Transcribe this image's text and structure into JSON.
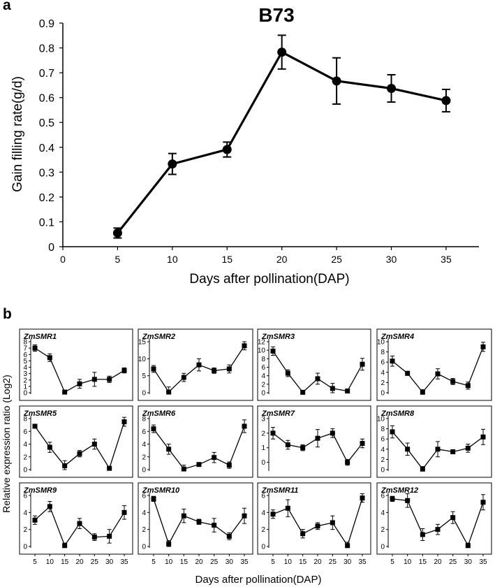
{
  "panel_a": {
    "letter": "a",
    "chart_data": {
      "type": "line",
      "title": "B73",
      "xlabel": "Days after pollination(DAP)",
      "ylabel": "Gain filling rate(g/d)",
      "x": [
        5,
        10,
        15,
        20,
        25,
        30,
        35
      ],
      "values": [
        0.055,
        0.333,
        0.391,
        0.783,
        0.667,
        0.637,
        0.588
      ],
      "errors": [
        0.02,
        0.042,
        0.03,
        0.068,
        0.093,
        0.055,
        0.045
      ],
      "xlim": [
        0,
        38
      ],
      "ylim": [
        0,
        0.9
      ],
      "xticks": [
        0,
        5,
        10,
        15,
        20,
        25,
        30,
        35
      ],
      "xtick_labels": [
        "0",
        "5",
        "10",
        "15",
        "20",
        "25",
        "30",
        "35"
      ],
      "yticks": [
        0,
        0.1,
        0.2,
        0.3,
        0.4,
        0.5,
        0.6,
        0.7,
        0.8,
        0.9
      ],
      "ytick_labels": [
        "0",
        "0.1",
        "0.2",
        "0.3",
        "0.4",
        "0.5",
        "0.6",
        "0.7",
        "0.8",
        "0.9"
      ],
      "marker": "circle",
      "color": "#000000"
    }
  },
  "panel_b": {
    "letter": "b",
    "xlabel": "Days after pollination(DAP)",
    "ylabel": "Relative expression ratio (Log2)",
    "x": [
      5,
      10,
      15,
      20,
      25,
      30,
      35
    ],
    "xtick_labels": [
      "5",
      "10",
      "15",
      "20",
      "25",
      "30",
      "35"
    ],
    "chart_data": [
      {
        "type": "line",
        "title": "ZmSMR1",
        "ylim": [
          0,
          8
        ],
        "yticks": [
          0,
          1,
          2,
          3,
          4,
          5,
          6,
          7,
          8
        ],
        "values": [
          7.0,
          5.5,
          0.1,
          1.4,
          2.1,
          2.1,
          3.5
        ],
        "errors": [
          0.5,
          0.6,
          0.3,
          0.7,
          1.1,
          0.5,
          0.4
        ]
      },
      {
        "type": "line",
        "title": "ZmSMR2",
        "ylim": [
          0,
          15
        ],
        "yticks": [
          0,
          5,
          10,
          15
        ],
        "values": [
          7.0,
          0.2,
          4.5,
          8.2,
          6.5,
          7.0,
          13.8
        ],
        "errors": [
          1.0,
          1.5,
          1.2,
          1.8,
          0.8,
          1.2,
          1.2
        ]
      },
      {
        "type": "line",
        "title": "ZmSMR3",
        "ylim": [
          0,
          12
        ],
        "yticks": [
          0,
          2,
          4,
          6,
          8,
          10,
          12
        ],
        "values": [
          9.8,
          4.6,
          0.1,
          3.3,
          1.0,
          0.4,
          6.7
        ],
        "errors": [
          1.0,
          0.8,
          0.4,
          1.3,
          1.2,
          0.5,
          1.4
        ]
      },
      {
        "type": "line",
        "title": "ZmSMR4",
        "ylim": [
          0,
          10
        ],
        "yticks": [
          0,
          2,
          4,
          6,
          8,
          10
        ],
        "values": [
          6.2,
          3.8,
          0.1,
          3.7,
          2.2,
          1.4,
          9.0
        ],
        "errors": [
          1.0,
          0.4,
          0.5,
          1.0,
          0.6,
          0.7,
          0.9
        ]
      },
      {
        "type": "line",
        "title": "ZmSMR5",
        "ylim": [
          0,
          8
        ],
        "yticks": [
          0,
          2,
          4,
          6,
          8
        ],
        "values": [
          6.8,
          3.5,
          0.6,
          2.5,
          4.0,
          0.2,
          7.5
        ],
        "errors": [
          0.3,
          0.8,
          0.8,
          0.5,
          0.8,
          0.3,
          0.7
        ]
      },
      {
        "type": "line",
        "title": "ZmSMR6",
        "ylim": [
          0,
          8
        ],
        "yticks": [
          0,
          2,
          4,
          6,
          8
        ],
        "values": [
          6.4,
          3.2,
          0.1,
          0.8,
          1.9,
          0.7,
          6.8
        ],
        "errors": [
          0.6,
          0.8,
          0.6,
          0.3,
          0.8,
          0.5,
          1.0
        ]
      },
      {
        "type": "line",
        "title": "ZmSMR7",
        "ylim": [
          -0.5,
          3
        ],
        "yticks": [
          0,
          1,
          2,
          3
        ],
        "values": [
          2.0,
          1.2,
          1.0,
          1.65,
          2.0,
          0.0,
          1.3
        ],
        "errors": [
          0.4,
          0.3,
          0.2,
          0.6,
          0.3,
          0.2,
          0.3
        ]
      },
      {
        "type": "line",
        "title": "ZmSMR8",
        "ylim": [
          0,
          10
        ],
        "yticks": [
          0,
          2,
          4,
          6,
          8,
          10
        ],
        "values": [
          7.4,
          4.0,
          0.1,
          4.0,
          3.5,
          4.2,
          6.4
        ],
        "errors": [
          1.2,
          1.2,
          0.5,
          1.5,
          0.4,
          0.8,
          1.5
        ]
      },
      {
        "type": "line",
        "title": "ZmSMR9",
        "ylim": [
          0,
          6
        ],
        "yticks": [
          0,
          2,
          4,
          6
        ],
        "values": [
          3.1,
          4.7,
          0.1,
          2.7,
          1.1,
          1.2,
          4.0
        ],
        "errors": [
          0.5,
          0.6,
          0.3,
          0.6,
          0.4,
          0.8,
          0.8
        ]
      },
      {
        "type": "line",
        "title": "ZmSMR10",
        "ylim": [
          0,
          6
        ],
        "yticks": [
          0,
          2,
          4,
          6
        ],
        "values": [
          5.6,
          0.3,
          3.6,
          2.9,
          2.5,
          1.2,
          3.6
        ],
        "errors": [
          0.3,
          0.4,
          0.8,
          0.3,
          0.8,
          0.4,
          0.9
        ]
      },
      {
        "type": "line",
        "title": "ZmSMR11",
        "ylim": [
          0,
          6
        ],
        "yticks": [
          0,
          2,
          4,
          6
        ],
        "values": [
          3.8,
          4.5,
          1.5,
          2.4,
          2.8,
          0.1,
          5.7
        ],
        "errors": [
          0.5,
          1.0,
          0.5,
          0.4,
          0.8,
          0.4,
          0.5
        ]
      },
      {
        "type": "line",
        "title": "ZmSMR12",
        "ylim": [
          0,
          6
        ],
        "yticks": [
          0,
          2,
          4,
          6
        ],
        "values": [
          5.6,
          5.4,
          1.4,
          2.0,
          3.4,
          0.1,
          5.2
        ],
        "errors": [
          0.3,
          0.8,
          0.7,
          0.6,
          0.7,
          0.3,
          0.9
        ]
      }
    ]
  }
}
